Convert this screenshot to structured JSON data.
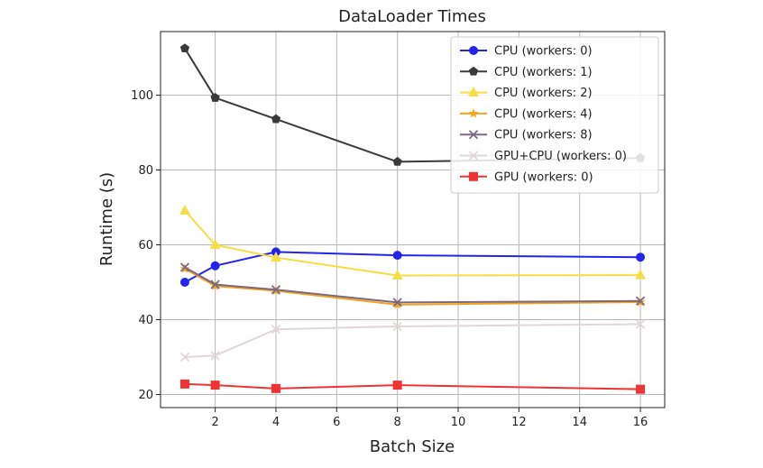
{
  "chart_data": {
    "type": "line",
    "title": "DataLoader Times",
    "xlabel": "Batch Size",
    "ylabel": "Runtime (s)",
    "x": [
      1,
      2,
      4,
      8,
      16
    ],
    "xlim": [
      0.2,
      16.8
    ],
    "ylim": [
      16.5,
      117
    ],
    "xticks": [
      2,
      4,
      6,
      8,
      10,
      12,
      14,
      16
    ],
    "yticks": [
      20,
      40,
      60,
      80,
      100
    ],
    "grid": true,
    "legend_position": "top-right",
    "series": [
      {
        "name": "CPU (workers: 0)",
        "color": "#2424ee",
        "marker": "circle",
        "values": [
          50.0,
          54.4,
          58.1,
          57.2,
          56.7
        ]
      },
      {
        "name": "CPU (workers: 1)",
        "color": "#3a3a3a",
        "marker": "pentagon",
        "values": [
          112.5,
          99.3,
          93.6,
          82.2,
          83.2
        ]
      },
      {
        "name": "CPU (workers: 2)",
        "color": "#f5dd44",
        "marker": "triangle",
        "values": [
          69.2,
          60.0,
          56.6,
          51.8,
          51.9
        ]
      },
      {
        "name": "CPU (workers: 4)",
        "color": "#f5a21e",
        "marker": "star",
        "values": [
          53.6,
          49.0,
          47.7,
          44.0,
          44.7
        ]
      },
      {
        "name": "CPU (workers: 8)",
        "color": "#7a6a82",
        "marker": "x",
        "values": [
          54.0,
          49.4,
          48.0,
          44.6,
          45.0
        ]
      },
      {
        "name": "GPU+CPU (workers: 0)",
        "color": "#e2d6d8",
        "marker": "x",
        "values": [
          30.0,
          30.4,
          37.4,
          38.2,
          38.8
        ]
      },
      {
        "name": "GPU (workers: 0)",
        "color": "#ee3333",
        "marker": "square",
        "values": [
          22.8,
          22.5,
          21.6,
          22.5,
          21.4
        ]
      }
    ]
  }
}
